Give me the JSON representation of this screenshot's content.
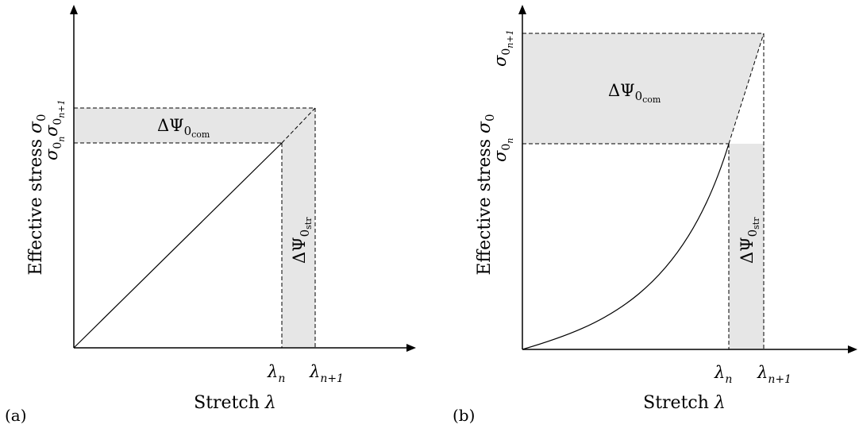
{
  "panels": [
    {
      "panel_label": "(a)",
      "x_axis_title": "Stretch",
      "x_axis_symbol": "λ",
      "y_axis_title": "Effective stress",
      "y_axis_symbol": "σ",
      "y_axis_symbol_sub": "0",
      "x_ticks": [
        {
          "base": "λ",
          "sub": "n"
        },
        {
          "base": "λ",
          "sub": "n+1"
        }
      ],
      "y_ticks": [
        {
          "base": "σ",
          "sub": "0",
          "subsub": "n"
        },
        {
          "base": "σ",
          "sub": "0",
          "subsub": "n+1"
        }
      ],
      "complementary_energy": {
        "base": "ΔΨ",
        "sub": "0",
        "subsub": "com"
      },
      "strain_energy": {
        "base": "ΔΨ",
        "sub": "0",
        "subsub": "str"
      },
      "curve_shape": "linear"
    },
    {
      "panel_label": "(b)",
      "x_axis_title": "Stretch",
      "x_axis_symbol": "λ",
      "y_axis_title": "Effective stress",
      "y_axis_symbol": "σ",
      "y_axis_symbol_sub": "0",
      "x_ticks": [
        {
          "base": "λ",
          "sub": "n"
        },
        {
          "base": "λ",
          "sub": "n+1"
        }
      ],
      "y_ticks": [
        {
          "base": "σ",
          "sub": "0",
          "subsub": "n"
        },
        {
          "base": "σ",
          "sub": "0",
          "subsub": "n+1"
        }
      ],
      "complementary_energy": {
        "base": "ΔΨ",
        "sub": "0",
        "subsub": "com"
      },
      "strain_energy": {
        "base": "ΔΨ",
        "sub": "0",
        "subsub": "str"
      },
      "curve_shape": "exponential"
    }
  ],
  "colors": {
    "shade": "#e6e6e6",
    "line": "#000000"
  }
}
